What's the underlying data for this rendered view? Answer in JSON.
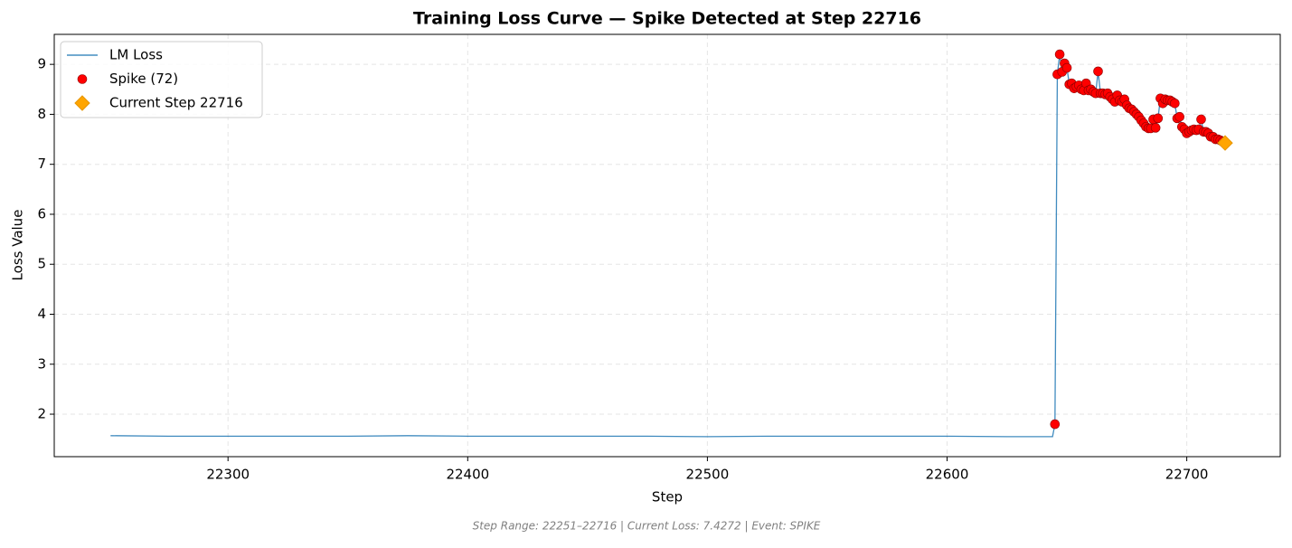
{
  "chart_data": {
    "type": "line",
    "title": "Training Loss Curve — Spike Detected at Step 22716",
    "x_label": "Step",
    "y_label": "Loss Value",
    "footnote": "Step Range: 22251–22716 | Current Loss: 7.4272 | Event: SPIKE",
    "xlim": [
      22227.5,
      22739
    ],
    "ylim": [
      1.15,
      9.6
    ],
    "xticks": [
      22300,
      22400,
      22500,
      22600,
      22700
    ],
    "yticks": [
      2,
      3,
      4,
      5,
      6,
      7,
      8,
      9
    ],
    "grid": true,
    "legend": "upper left",
    "series": [
      {
        "name": "LM Loss",
        "type": "line",
        "color": "#1f77b4",
        "x": [
          22251,
          22275,
          22300,
          22325,
          22350,
          22375,
          22400,
          22425,
          22450,
          22475,
          22500,
          22525,
          22550,
          22575,
          22600,
          22625,
          22644,
          22645,
          22646,
          22647,
          22648,
          22649,
          22650,
          22651,
          22652,
          22653,
          22654,
          22655,
          22656,
          22657,
          22658,
          22659,
          22660,
          22661,
          22662,
          22663,
          22664,
          22665,
          22666,
          22667,
          22668,
          22669,
          22670,
          22671,
          22672,
          22673,
          22674,
          22675,
          22676,
          22677,
          22678,
          22679,
          22680,
          22681,
          22682,
          22683,
          22684,
          22685,
          22686,
          22687,
          22688,
          22689,
          22690,
          22691,
          22692,
          22693,
          22694,
          22695,
          22696,
          22697,
          22698,
          22699,
          22700,
          22701,
          22702,
          22703,
          22704,
          22705,
          22706,
          22707,
          22708,
          22709,
          22710,
          22711,
          22712,
          22713,
          22714,
          22715,
          22716
        ],
        "values": [
          1.57,
          1.56,
          1.56,
          1.56,
          1.56,
          1.57,
          1.56,
          1.56,
          1.56,
          1.56,
          1.55,
          1.56,
          1.56,
          1.56,
          1.56,
          1.55,
          1.55,
          1.8,
          8.8,
          9.2,
          8.85,
          9.02,
          8.93,
          8.6,
          8.62,
          8.52,
          8.55,
          8.58,
          8.5,
          8.48,
          8.62,
          8.48,
          8.5,
          8.45,
          8.42,
          8.86,
          8.42,
          8.42,
          8.4,
          8.42,
          8.35,
          8.3,
          8.25,
          8.38,
          8.28,
          8.25,
          8.3,
          8.18,
          8.12,
          8.1,
          8.05,
          8.0,
          7.95,
          7.88,
          7.82,
          7.75,
          7.72,
          7.72,
          7.9,
          7.73,
          7.92,
          8.32,
          8.22,
          8.3,
          8.28,
          8.28,
          8.25,
          8.22,
          7.92,
          7.95,
          7.75,
          7.7,
          7.62,
          7.65,
          7.68,
          7.7,
          7.68,
          7.7,
          7.9,
          7.65,
          7.65,
          7.62,
          7.55,
          7.55,
          7.5,
          7.5,
          7.48,
          7.45,
          7.4272
        ]
      },
      {
        "name": "Spike (72)",
        "type": "scatter",
        "color": "#ff0000",
        "x": [
          22645,
          22646,
          22647,
          22648,
          22649,
          22650,
          22651,
          22652,
          22653,
          22654,
          22655,
          22656,
          22657,
          22658,
          22659,
          22660,
          22661,
          22662,
          22663,
          22664,
          22665,
          22666,
          22667,
          22668,
          22669,
          22670,
          22671,
          22672,
          22673,
          22674,
          22675,
          22676,
          22677,
          22678,
          22679,
          22680,
          22681,
          22682,
          22683,
          22684,
          22685,
          22686,
          22687,
          22688,
          22689,
          22690,
          22691,
          22692,
          22693,
          22694,
          22695,
          22696,
          22697,
          22698,
          22699,
          22700,
          22701,
          22702,
          22703,
          22704,
          22705,
          22706,
          22707,
          22708,
          22709,
          22710,
          22711,
          22712,
          22713,
          22714,
          22715,
          22716
        ],
        "values": [
          1.8,
          8.8,
          9.2,
          8.85,
          9.02,
          8.93,
          8.6,
          8.62,
          8.52,
          8.55,
          8.58,
          8.5,
          8.48,
          8.62,
          8.48,
          8.5,
          8.45,
          8.42,
          8.86,
          8.42,
          8.42,
          8.4,
          8.42,
          8.35,
          8.3,
          8.25,
          8.38,
          8.28,
          8.25,
          8.3,
          8.18,
          8.12,
          8.1,
          8.05,
          8.0,
          7.95,
          7.88,
          7.82,
          7.75,
          7.72,
          7.72,
          7.9,
          7.73,
          7.92,
          8.32,
          8.22,
          8.3,
          8.28,
          8.28,
          8.25,
          8.22,
          7.92,
          7.95,
          7.75,
          7.7,
          7.62,
          7.65,
          7.68,
          7.7,
          7.68,
          7.7,
          7.9,
          7.65,
          7.65,
          7.62,
          7.55,
          7.55,
          7.5,
          7.5,
          7.48,
          7.45,
          7.4272
        ]
      },
      {
        "name": "Current Step 22716",
        "type": "diamond",
        "color": "#ffa500",
        "x": [
          22716
        ],
        "values": [
          7.4272
        ]
      }
    ]
  }
}
